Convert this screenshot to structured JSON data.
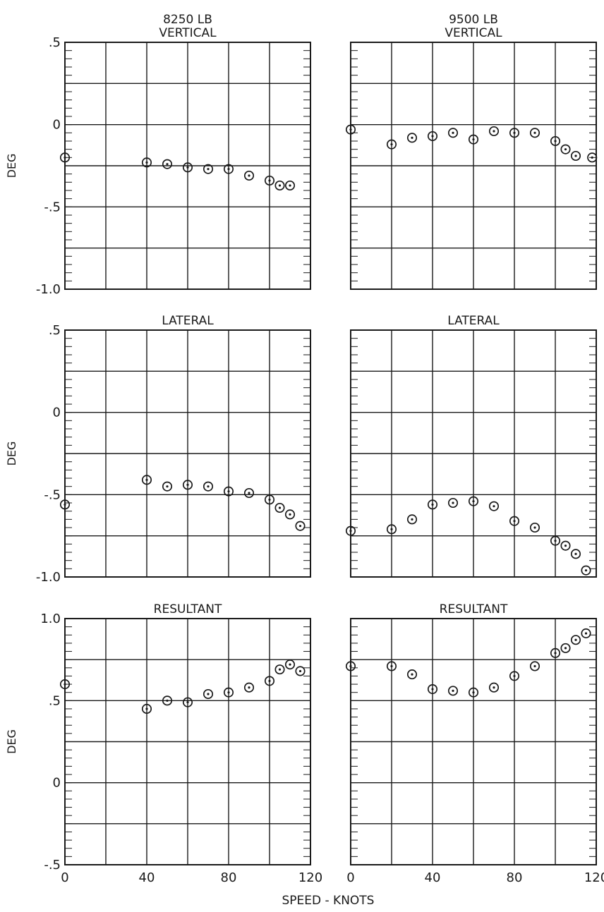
{
  "figure": {
    "xlabel": "SPEED - KNOTS",
    "ylabel": "DEG",
    "colors": {
      "ink": "#1a1a1a",
      "paper": "#ffffff"
    }
  },
  "chart_data": [
    {
      "type": "scatter",
      "title": "8250 LB\nVERTICAL",
      "ylabel": "DEG",
      "xlim": [
        0,
        120
      ],
      "ylim": [
        -1.0,
        0.5
      ],
      "yticks": [
        ".5",
        "0",
        "-.5",
        "-1.0"
      ],
      "xticks": [],
      "grid": true,
      "x": [
        0,
        40,
        50,
        60,
        70,
        80,
        90,
        100,
        105,
        110
      ],
      "y": [
        -0.2,
        -0.23,
        -0.24,
        -0.26,
        -0.27,
        -0.27,
        -0.31,
        -0.34,
        -0.37,
        -0.37
      ]
    },
    {
      "type": "scatter",
      "title": "9500 LB\nVERTICAL",
      "ylabel": "",
      "xlim": [
        0,
        120
      ],
      "ylim": [
        -1.0,
        0.5
      ],
      "yticks": [],
      "xticks": [],
      "grid": true,
      "x": [
        0,
        20,
        30,
        40,
        50,
        60,
        70,
        80,
        90,
        100,
        105,
        110,
        118
      ],
      "y": [
        -0.03,
        -0.12,
        -0.08,
        -0.07,
        -0.05,
        -0.09,
        -0.04,
        -0.05,
        -0.05,
        -0.1,
        -0.15,
        -0.19,
        -0.2
      ]
    },
    {
      "type": "scatter",
      "title": "LATERAL",
      "ylabel": "DEG",
      "xlim": [
        0,
        120
      ],
      "ylim": [
        -1.0,
        0.5
      ],
      "yticks": [
        ".5",
        "0",
        "-.5",
        "-1.0"
      ],
      "xticks": [],
      "grid": true,
      "x": [
        0,
        40,
        50,
        60,
        70,
        80,
        90,
        100,
        105,
        110,
        115
      ],
      "y": [
        -0.56,
        -0.41,
        -0.45,
        -0.44,
        -0.45,
        -0.48,
        -0.49,
        -0.53,
        -0.58,
        -0.62,
        -0.69
      ]
    },
    {
      "type": "scatter",
      "title": "LATERAL",
      "ylabel": "",
      "xlim": [
        0,
        120
      ],
      "ylim": [
        -1.0,
        0.5
      ],
      "yticks": [],
      "xticks": [],
      "grid": true,
      "x": [
        0,
        20,
        30,
        40,
        50,
        60,
        70,
        80,
        90,
        100,
        105,
        110,
        115
      ],
      "y": [
        -0.72,
        -0.71,
        -0.65,
        -0.56,
        -0.55,
        -0.54,
        -0.57,
        -0.66,
        -0.7,
        -0.78,
        -0.81,
        -0.86,
        -0.96
      ]
    },
    {
      "type": "scatter",
      "title": "RESULTANT",
      "ylabel": "DEG",
      "xlim": [
        0,
        120
      ],
      "ylim": [
        -0.5,
        1.0
      ],
      "yticks": [
        "1.0",
        ".5",
        "0",
        "-.5"
      ],
      "xticks": [
        "0",
        "40",
        "80",
        "120"
      ],
      "grid": true,
      "x": [
        0,
        40,
        50,
        60,
        70,
        80,
        90,
        100,
        105,
        110,
        115
      ],
      "y": [
        0.6,
        0.45,
        0.5,
        0.49,
        0.54,
        0.55,
        0.58,
        0.62,
        0.69,
        0.72,
        0.68
      ]
    },
    {
      "type": "scatter",
      "title": "RESULTANT",
      "ylabel": "",
      "xlim": [
        0,
        120
      ],
      "ylim": [
        -0.5,
        1.0
      ],
      "yticks": [],
      "xticks": [
        "0",
        "40",
        "80",
        "120"
      ],
      "grid": true,
      "x": [
        0,
        20,
        30,
        40,
        50,
        60,
        70,
        80,
        90,
        100,
        105,
        110,
        115
      ],
      "y": [
        0.71,
        0.71,
        0.66,
        0.57,
        0.56,
        0.55,
        0.58,
        0.65,
        0.71,
        0.79,
        0.82,
        0.87,
        0.91
      ]
    }
  ]
}
